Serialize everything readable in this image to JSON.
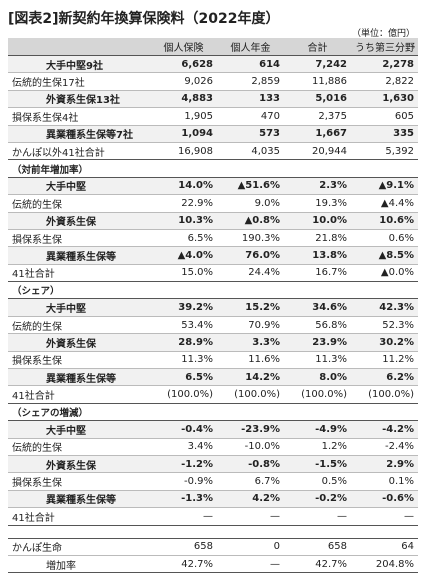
{
  "title": "[図表2]新契約年換算保険料（2022年度）",
  "unit": "（単位：億円）",
  "table": {
    "header": [
      "個人保険",
      "個人年金",
      "合計",
      "うち第三分野"
    ],
    "sections": [
      {
        "rows": [
          {
            "label": "大手中堅9社",
            "cells": [
              "6,628",
              "614",
              "7,242",
              "2,278"
            ]
          },
          {
            "label": "伝統的生保17社",
            "cells": [
              "9,026",
              "2,859",
              "11,886",
              "2,822"
            ]
          },
          {
            "label": "外資系生保13社",
            "cells": [
              "4,883",
              "133",
              "5,016",
              "1,630"
            ]
          },
          {
            "label": "損保系生保4社",
            "cells": [
              "1,905",
              "470",
              "2,375",
              "605"
            ]
          },
          {
            "label": "異業種系生保等7社",
            "cells": [
              "1,094",
              "573",
              "1,667",
              "335"
            ]
          },
          {
            "label": "かんぽ以外41社合計",
            "cells": [
              "16,908",
              "4,035",
              "20,944",
              "5,392"
            ]
          }
        ]
      },
      {
        "heading": "（対前年増加率）",
        "rows": [
          {
            "label": "大手中堅",
            "cells": [
              "14.0%",
              "▲51.6%",
              "2.3%",
              "▲9.1%"
            ]
          },
          {
            "label": "伝統的生保",
            "cells": [
              "22.9%",
              "9.0%",
              "19.3%",
              "▲4.4%"
            ]
          },
          {
            "label": "外資系生保",
            "cells": [
              "10.3%",
              "▲0.8%",
              "10.0%",
              "10.6%"
            ]
          },
          {
            "label": "損保系生保",
            "cells": [
              "6.5%",
              "190.3%",
              "21.8%",
              "0.6%"
            ]
          },
          {
            "label": "異業種系生保等",
            "cells": [
              "▲4.0%",
              "76.0%",
              "13.8%",
              "▲8.5%"
            ]
          },
          {
            "label": "41社合計",
            "cells": [
              "15.0%",
              "24.4%",
              "16.7%",
              "▲0.0%"
            ]
          }
        ]
      },
      {
        "heading": "（シェア）",
        "rows": [
          {
            "label": "大手中堅",
            "cells": [
              "39.2%",
              "15.2%",
              "34.6%",
              "42.3%"
            ]
          },
          {
            "label": "伝統的生保",
            "cells": [
              "53.4%",
              "70.9%",
              "56.8%",
              "52.3%"
            ]
          },
          {
            "label": "外資系生保",
            "cells": [
              "28.9%",
              "3.3%",
              "23.9%",
              "30.2%"
            ]
          },
          {
            "label": "損保系生保",
            "cells": [
              "11.3%",
              "11.6%",
              "11.3%",
              "11.2%"
            ]
          },
          {
            "label": "異業種系生保等",
            "cells": [
              "6.5%",
              "14.2%",
              "8.0%",
              "6.2%"
            ]
          },
          {
            "label": "41社合計",
            "cells": [
              "(100.0%)",
              "(100.0%)",
              "(100.0%)",
              "(100.0%)"
            ]
          }
        ]
      },
      {
        "heading": "（シェアの増減）",
        "rows": [
          {
            "label": "大手中堅",
            "cells": [
              "-0.4%",
              "-23.9%",
              "-4.9%",
              "-4.2%"
            ]
          },
          {
            "label": "伝統的生保",
            "cells": [
              "3.4%",
              "-10.0%",
              "1.2%",
              "-2.4%"
            ]
          },
          {
            "label": "外資系生保",
            "cells": [
              "-1.2%",
              "-0.8%",
              "-1.5%",
              "2.9%"
            ]
          },
          {
            "label": "損保系生保",
            "cells": [
              "-0.9%",
              "6.7%",
              "0.5%",
              "0.1%"
            ]
          },
          {
            "label": "異業種系生保等",
            "cells": [
              "-1.3%",
              "4.2%",
              "-0.2%",
              "-0.6%"
            ]
          },
          {
            "label": "41社合計",
            "cells": [
              "—",
              "—",
              "—",
              "—"
            ]
          }
        ]
      },
      {
        "rows": [
          {
            "label": "かんぽ生命",
            "cells": [
              "658",
              "0",
              "658",
              "64"
            ]
          },
          {
            "label": "増加率",
            "cells": [
              "42.7%",
              "—",
              "42.7%",
              "204.8%"
            ]
          }
        ]
      }
    ]
  }
}
